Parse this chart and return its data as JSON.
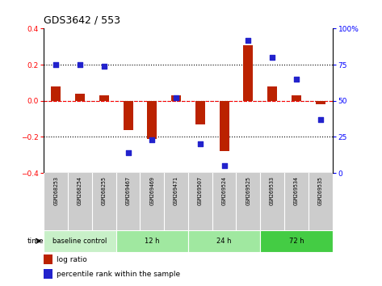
{
  "title": "GDS3642 / 553",
  "samples": [
    "GSM268253",
    "GSM268254",
    "GSM268255",
    "GSM269467",
    "GSM269469",
    "GSM269471",
    "GSM269507",
    "GSM269524",
    "GSM269525",
    "GSM269533",
    "GSM269534",
    "GSM269535"
  ],
  "log_ratio": [
    0.08,
    0.04,
    0.03,
    -0.16,
    -0.21,
    0.03,
    -0.13,
    -0.28,
    0.31,
    0.08,
    0.03,
    -0.02
  ],
  "percentile_rank": [
    75,
    75,
    74,
    14,
    23,
    52,
    20,
    5,
    92,
    80,
    65,
    37
  ],
  "groups": [
    {
      "label": "baseline control",
      "start": 0,
      "end": 3,
      "color": "#c8f0c8"
    },
    {
      "label": "12 h",
      "start": 3,
      "end": 6,
      "color": "#a0e8a0"
    },
    {
      "label": "24 h",
      "start": 6,
      "end": 9,
      "color": "#a0e8a0"
    },
    {
      "label": "72 h",
      "start": 9,
      "end": 12,
      "color": "#44cc44"
    }
  ],
  "bar_color": "#bb2200",
  "dot_color": "#2222cc",
  "ylim_left": [
    -0.4,
    0.4
  ],
  "ylim_right": [
    0,
    100
  ],
  "yticks_left": [
    -0.4,
    -0.2,
    0.0,
    0.2,
    0.4
  ],
  "yticks_right": [
    0,
    25,
    50,
    75,
    100
  ],
  "hlines": [
    -0.2,
    0.0,
    0.2
  ],
  "background_color": "#ffffff",
  "sample_bg": "#cccccc",
  "title_fontsize": 9,
  "bar_width": 0.4
}
